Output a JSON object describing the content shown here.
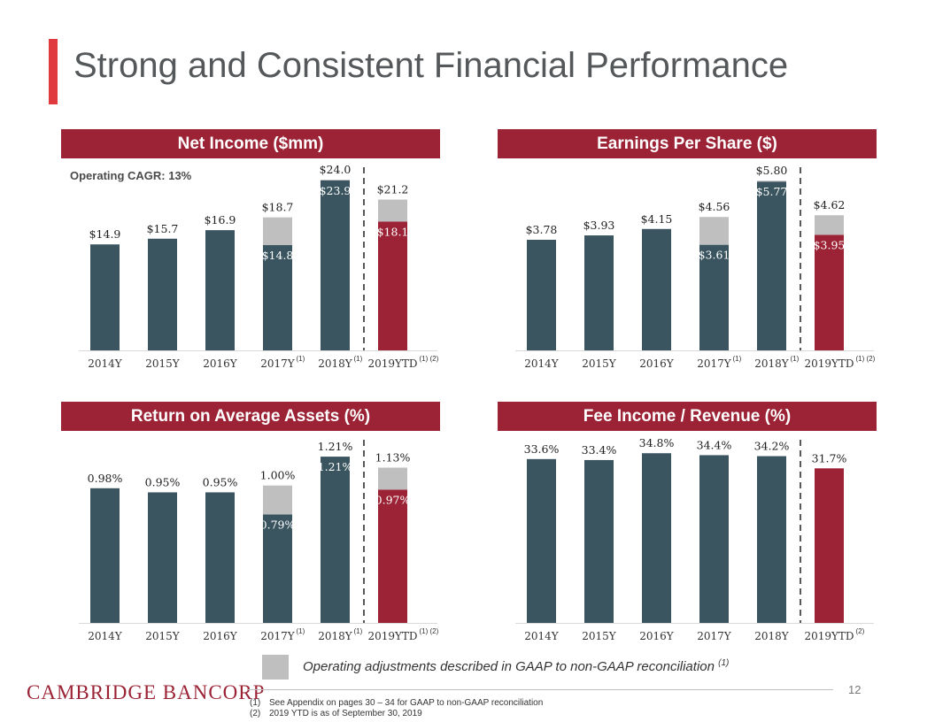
{
  "title": "Strong and Consistent Financial Performance",
  "colors": {
    "bar": "#3a5560",
    "bar_ytd": "#9b2335",
    "adjustment": "#bfbfbf",
    "header": "#9b2335",
    "accent": "#e0393e"
  },
  "legend": {
    "text": "Operating adjustments described in GAAP to non-GAAP reconciliation",
    "sup": "(1)"
  },
  "footer": {
    "logo": "CAMBRIDGE BANCORP",
    "page_number": "12",
    "notes": [
      {
        "num": "(1)",
        "text": "See Appendix on pages 30 – 34 for GAAP to non-GAAP reconciliation"
      },
      {
        "num": "(2)",
        "text": "2019 YTD is as of September 30, 2019"
      }
    ]
  },
  "chart_data": [
    {
      "type": "bar",
      "title": "Net Income ($mm)",
      "annotation": "Operating CAGR: 13%",
      "categories": [
        "2014Y",
        "2015Y",
        "2016Y",
        "2017Y",
        "2018Y",
        "2019YTD"
      ],
      "footnote_refs": [
        "",
        "",
        "",
        "(1)",
        "(1)",
        "(1) (2)"
      ],
      "series": [
        {
          "name": "GAAP",
          "values": [
            14.9,
            15.7,
            16.9,
            14.8,
            23.9,
            18.1
          ]
        },
        {
          "name": "Operating adjustment",
          "values": [
            0,
            0,
            0,
            3.9,
            0.1,
            3.1
          ]
        }
      ],
      "top_labels": [
        "$14.9",
        "$15.7",
        "$16.9",
        "$18.7",
        "$24.0",
        "$21.2"
      ],
      "inner_labels": [
        "",
        "",
        "",
        "$14.8",
        "$23.9",
        "$18.1"
      ],
      "ylim": [
        0,
        25.5
      ]
    },
    {
      "type": "bar",
      "title": "Earnings Per Share ($)",
      "categories": [
        "2014Y",
        "2015Y",
        "2016Y",
        "2017Y",
        "2018Y",
        "2019YTD"
      ],
      "footnote_refs": [
        "",
        "",
        "",
        "(1)",
        "(1)",
        "(1) (2)"
      ],
      "series": [
        {
          "name": "GAAP",
          "values": [
            3.78,
            3.93,
            4.15,
            3.61,
            5.77,
            3.95
          ]
        },
        {
          "name": "Operating adjustment",
          "values": [
            0,
            0,
            0,
            0.95,
            0.03,
            0.67
          ]
        }
      ],
      "top_labels": [
        "$3.78",
        "$3.93",
        "$4.15",
        "$4.56",
        "$5.80",
        "$4.62"
      ],
      "inner_labels": [
        "",
        "",
        "",
        "$3.61",
        "$5.77",
        "$3.95"
      ],
      "ylim": [
        0,
        6.2
      ]
    },
    {
      "type": "bar",
      "title": "Return on Average Assets (%)",
      "categories": [
        "2014Y",
        "2015Y",
        "2016Y",
        "2017Y",
        "2018Y",
        "2019YTD"
      ],
      "footnote_refs": [
        "",
        "",
        "",
        "(1)",
        "(1)",
        "(1) (2)"
      ],
      "series": [
        {
          "name": "GAAP",
          "values": [
            0.98,
            0.95,
            0.95,
            0.79,
            1.21,
            0.97
          ]
        },
        {
          "name": "Operating adjustment",
          "values": [
            0,
            0,
            0,
            0.21,
            0,
            0.16
          ]
        }
      ],
      "top_labels": [
        "0.98%",
        "0.95%",
        "0.95%",
        "1.00%",
        "1.21%",
        "1.13%"
      ],
      "inner_labels": [
        "",
        "",
        "",
        "0.79%",
        "1.21%",
        "0.97%"
      ],
      "ylim": [
        0,
        1.32
      ]
    },
    {
      "type": "bar",
      "title": "Fee Income / Revenue (%)",
      "categories": [
        "2014Y",
        "2015Y",
        "2016Y",
        "2017Y",
        "2018Y",
        "2019YTD"
      ],
      "footnote_refs": [
        "",
        "",
        "",
        "",
        "",
        "(2)"
      ],
      "series": [
        {
          "name": "Fee income / revenue",
          "values": [
            33.6,
            33.4,
            34.8,
            34.4,
            34.2,
            31.7
          ]
        }
      ],
      "top_labels": [
        "33.6%",
        "33.4%",
        "34.8%",
        "34.4%",
        "34.2%",
        "31.7%"
      ],
      "inner_labels": [
        "",
        "",
        "",
        "",
        "",
        ""
      ],
      "ylim": [
        0,
        37.2
      ]
    }
  ]
}
